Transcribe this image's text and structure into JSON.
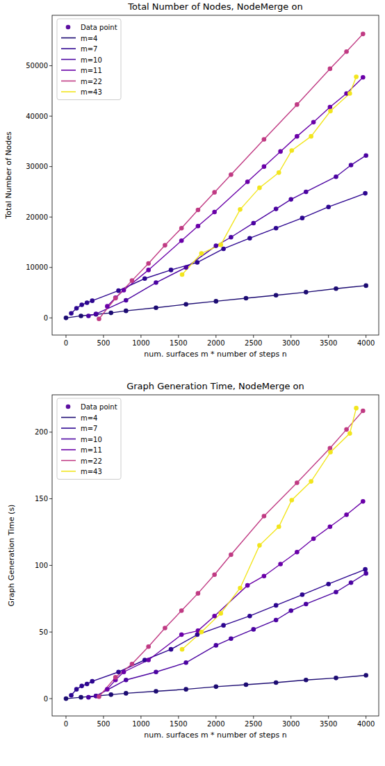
{
  "chart_data": [
    {
      "type": "line",
      "title": "Total Number of Nodes, NodeMerge on",
      "x_label": "num. surfaces m * number of steps n",
      "y_label": "Total Number of Nodes",
      "marker_label": "Data point",
      "xlim": [
        -185,
        4170
      ],
      "xticks": [
        0,
        500,
        1000,
        1500,
        2000,
        2500,
        3000,
        3500,
        4000
      ],
      "ylim": [
        -3400,
        60000
      ],
      "yticks": [
        0,
        10000,
        20000,
        30000,
        40000,
        50000
      ],
      "legend": "upper left",
      "marker": "circle",
      "series": [
        {
          "name": "m=4",
          "color": "#1c0b72",
          "x": [
            0,
            200,
            400,
            600,
            800,
            1200,
            1600,
            2000,
            2400,
            2800,
            3200,
            3600,
            4000
          ],
          "values": [
            0,
            400,
            700,
            1000,
            1400,
            2000,
            2700,
            3300,
            3900,
            4500,
            5100,
            5800,
            6400
          ]
        },
        {
          "name": "m=7",
          "color": "#2d0690",
          "x": [
            70,
            140,
            210,
            280,
            350,
            700,
            1050,
            1400,
            1750,
            2100,
            2450,
            2800,
            3150,
            3500,
            3990
          ],
          "values": [
            900,
            1900,
            2600,
            3000,
            3400,
            5400,
            7800,
            9500,
            11000,
            13700,
            15800,
            17800,
            19800,
            22000,
            24700
          ]
        },
        {
          "name": "m=10",
          "color": "#4b03a1",
          "x": [
            300,
            400,
            800,
            1200,
            1600,
            2000,
            2200,
            2500,
            2800,
            3000,
            3200,
            3600,
            3800,
            4000
          ],
          "values": [
            400,
            800,
            3500,
            7000,
            10000,
            14300,
            16000,
            18800,
            21600,
            23500,
            25000,
            28000,
            30300,
            32200
          ]
        },
        {
          "name": "m=11",
          "color": "#6a00a8",
          "x": [
            550,
            660,
            770,
            1100,
            1540,
            1760,
            1980,
            2420,
            2640,
            2860,
            3080,
            3300,
            3520,
            3740,
            3960
          ],
          "values": [
            2300,
            4000,
            5500,
            9500,
            15300,
            18200,
            21000,
            27000,
            30000,
            33000,
            36000,
            38800,
            41800,
            44500,
            47700
          ]
        },
        {
          "name": "m=22",
          "color": "#c03a83",
          "x": [
            440,
            660,
            880,
            1100,
            1320,
            1540,
            1760,
            1980,
            2200,
            2640,
            3080,
            3520,
            3740,
            3960
          ],
          "values": [
            -200,
            3900,
            7400,
            10800,
            14400,
            17800,
            21400,
            24900,
            28400,
            35400,
            42300,
            49400,
            52800,
            56300
          ]
        },
        {
          "name": "m=43",
          "color": "#f2e51d",
          "x": [
            1548,
            1806,
            2064,
            2322,
            2580,
            2838,
            3010,
            3268,
            3526,
            3784,
            3870
          ],
          "values": [
            8600,
            12800,
            14500,
            21500,
            25800,
            28800,
            33200,
            36000,
            41000,
            44500,
            47800
          ]
        }
      ]
    },
    {
      "type": "line",
      "title": "Graph Generation Time, NodeMerge on",
      "x_label": "num. surfaces m * number of steps n",
      "y_label": "Graph Generation Time (s)",
      "marker_label": "Data point",
      "xlim": [
        -185,
        4170
      ],
      "xticks": [
        0,
        500,
        1000,
        1500,
        2000,
        2500,
        3000,
        3500,
        4000
      ],
      "ylim": [
        -13,
        228
      ],
      "yticks": [
        0,
        50,
        100,
        150,
        200
      ],
      "legend": "upper left",
      "marker": "circle",
      "series": [
        {
          "name": "m=4",
          "color": "#1c0b72",
          "x": [
            0,
            200,
            400,
            600,
            800,
            1200,
            1600,
            2000,
            2400,
            2800,
            3200,
            3600,
            4000
          ],
          "values": [
            0,
            1,
            2,
            3,
            4,
            5.5,
            7,
            9,
            10.5,
            12,
            14,
            15.5,
            17.5
          ]
        },
        {
          "name": "m=7",
          "color": "#2d0690",
          "x": [
            70,
            140,
            210,
            280,
            350,
            700,
            1050,
            1400,
            1750,
            2100,
            2450,
            2800,
            3150,
            3500,
            3990
          ],
          "values": [
            2.5,
            7,
            9.5,
            11,
            13,
            20,
            29,
            37,
            48,
            55,
            62,
            70,
            78,
            86,
            97
          ]
        },
        {
          "name": "m=10",
          "color": "#4b03a1",
          "x": [
            300,
            400,
            800,
            1200,
            1600,
            2000,
            2200,
            2500,
            2800,
            3000,
            3200,
            3600,
            3800,
            4000
          ],
          "values": [
            1,
            2,
            14,
            20,
            27,
            40,
            45,
            52,
            59,
            66,
            71,
            80,
            87,
            94
          ]
        },
        {
          "name": "m=11",
          "color": "#6a00a8",
          "x": [
            550,
            660,
            770,
            1100,
            1540,
            1760,
            1980,
            2420,
            2640,
            2860,
            3080,
            3300,
            3520,
            3740,
            3960
          ],
          "values": [
            7,
            14,
            20,
            29,
            48,
            51,
            62,
            85,
            92,
            101,
            110,
            120,
            129,
            138,
            148
          ]
        },
        {
          "name": "m=22",
          "color": "#c03a83",
          "x": [
            440,
            660,
            880,
            1100,
            1320,
            1540,
            1760,
            1980,
            2200,
            2640,
            3080,
            3520,
            3740,
            3960
          ],
          "values": [
            1.5,
            16,
            26,
            39,
            53,
            66,
            79,
            93,
            108,
            137,
            162,
            188,
            202,
            216
          ]
        },
        {
          "name": "m=43",
          "color": "#f2e51d",
          "x": [
            1548,
            1806,
            2064,
            2322,
            2580,
            2838,
            3010,
            3268,
            3526,
            3784,
            3870
          ],
          "values": [
            37,
            50,
            64,
            83,
            115,
            129,
            149,
            163,
            185,
            199,
            218
          ]
        }
      ]
    }
  ]
}
